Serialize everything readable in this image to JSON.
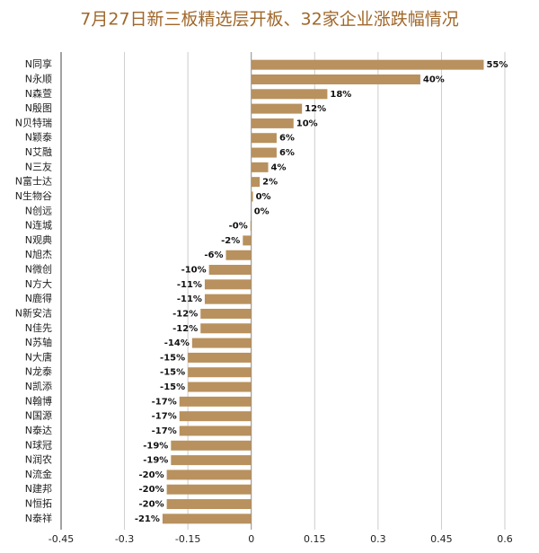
{
  "chart_data": {
    "type": "barh",
    "title": "7月27日新三板精选层开板、32家企业涨跌幅情况",
    "color": "#b8915e",
    "categories": [
      "N同享",
      "N永顺",
      "N森萱",
      "N殷图",
      "N贝特瑞",
      "N颖泰",
      "N艾融",
      "N三友",
      "N富士达",
      "N生物谷",
      "N创远",
      "N连城",
      "N观典",
      "N旭杰",
      "N微创",
      "N方大",
      "N鹿得",
      "N新安洁",
      "N佳先",
      "N苏轴",
      "N大唐",
      "N龙泰",
      "N凯添",
      "N翰博",
      "N国源",
      "N泰达",
      "N球冠",
      "N润农",
      "N流金",
      "N建邦",
      "N恒拓",
      "N泰祥"
    ],
    "values": [
      0.55,
      0.4,
      0.18,
      0.12,
      0.1,
      0.06,
      0.06,
      0.04,
      0.02,
      0.004,
      0,
      -0.002,
      -0.02,
      -0.06,
      -0.1,
      -0.11,
      -0.11,
      -0.12,
      -0.12,
      -0.14,
      -0.15,
      -0.15,
      -0.15,
      -0.17,
      -0.17,
      -0.17,
      -0.19,
      -0.19,
      -0.2,
      -0.2,
      -0.2,
      -0.21
    ],
    "value_labels": [
      "55%",
      "40%",
      "18%",
      "12%",
      "10%",
      "6%",
      "6%",
      "4%",
      "2%",
      "0%",
      "0%",
      "-0%",
      "-2%",
      "-6%",
      "-10%",
      "-11%",
      "-11%",
      "-12%",
      "-12%",
      "-14%",
      "-15%",
      "-15%",
      "-15%",
      "-17%",
      "-17%",
      "-17%",
      "-19%",
      "-19%",
      "-20%",
      "-20%",
      "-20%",
      "-21%"
    ],
    "xlim": [
      -0.45,
      0.6
    ],
    "xticks": [
      -0.45,
      -0.3,
      -0.15,
      0,
      0.15,
      0.3,
      0.45,
      0.6
    ],
    "grid": true
  }
}
